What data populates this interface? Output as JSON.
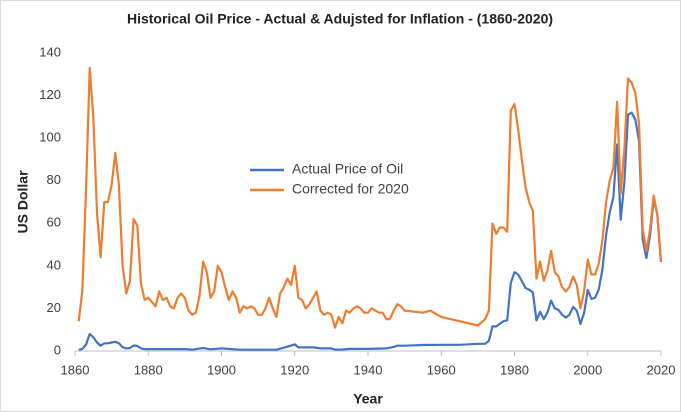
{
  "chart_data": {
    "type": "line",
    "title": "Historical Oil Price - Actual & Adujsted for Inflation - (1860-2020)",
    "xlabel": "Year",
    "ylabel": "US Dollar",
    "xlim": [
      1860,
      2020
    ],
    "xticks": [
      1860,
      1880,
      1900,
      1920,
      1940,
      1960,
      1980,
      2000,
      2020
    ],
    "ylim": [
      0,
      140
    ],
    "yticks": [
      0,
      20,
      40,
      60,
      80,
      100,
      120,
      140
    ],
    "grid": false,
    "legend": "center",
    "series": [
      {
        "name": "Actual Price of Oil",
        "color": "#4472c4",
        "x": [
          1861,
          1862,
          1863,
          1864,
          1865,
          1866,
          1867,
          1868,
          1869,
          1870,
          1871,
          1872,
          1873,
          1874,
          1875,
          1876,
          1877,
          1878,
          1879,
          1880,
          1885,
          1890,
          1892,
          1895,
          1897,
          1900,
          1905,
          1910,
          1915,
          1918,
          1920,
          1921,
          1925,
          1927,
          1930,
          1931,
          1933,
          1935,
          1940,
          1945,
          1947,
          1948,
          1950,
          1955,
          1960,
          1965,
          1970,
          1972,
          1973,
          1974,
          1975,
          1976,
          1977,
          1978,
          1979,
          1980,
          1981,
          1982,
          1983,
          1984,
          1985,
          1986,
          1987,
          1988,
          1989,
          1990,
          1991,
          1992,
          1993,
          1994,
          1995,
          1996,
          1997,
          1998,
          1999,
          2000,
          2001,
          2002,
          2003,
          2004,
          2005,
          2006,
          2007,
          2008,
          2009,
          2010,
          2011,
          2012,
          2013,
          2014,
          2015,
          2016,
          2017,
          2018,
          2019,
          2020
        ],
        "values": [
          0.5,
          1,
          3,
          8,
          6.5,
          4,
          2.5,
          3.6,
          3.6,
          4,
          4.3,
          3.6,
          1.8,
          1.2,
          1.4,
          2.6,
          2.4,
          1.2,
          0.9,
          0.9,
          0.9,
          0.9,
          0.6,
          1.4,
          0.8,
          1.2,
          0.6,
          0.6,
          0.6,
          2,
          3.1,
          1.7,
          1.7,
          1.2,
          1.2,
          0.65,
          0.7,
          1,
          1,
          1.2,
          1.9,
          2.5,
          2.5,
          2.8,
          2.9,
          2.9,
          3.4,
          3.4,
          4.8,
          11.6,
          11.5,
          12.8,
          14,
          14.4,
          32,
          37,
          35.9,
          32.9,
          29.6,
          28.8,
          27.6,
          14.4,
          18.4,
          15,
          18.2,
          23.7,
          20,
          19.3,
          17,
          15.7,
          17,
          20.7,
          19,
          12.7,
          17.9,
          28.7,
          24.5,
          25,
          28.8,
          38.3,
          54.5,
          65.1,
          72.4,
          97,
          61.7,
          79.6,
          111,
          112,
          108.6,
          98.9,
          52.4,
          43.7,
          54.2,
          71.3,
          64.2,
          41.8
        ]
      },
      {
        "name": "Corrected for 2020",
        "color": "#ed7d31",
        "x": [
          1861,
          1862,
          1863,
          1864,
          1865,
          1866,
          1867,
          1868,
          1869,
          1870,
          1871,
          1872,
          1873,
          1874,
          1875,
          1876,
          1877,
          1878,
          1879,
          1880,
          1881,
          1882,
          1883,
          1884,
          1885,
          1886,
          1887,
          1888,
          1889,
          1890,
          1891,
          1892,
          1893,
          1894,
          1895,
          1896,
          1897,
          1898,
          1899,
          1900,
          1901,
          1902,
          1903,
          1904,
          1905,
          1906,
          1907,
          1908,
          1909,
          1910,
          1911,
          1912,
          1913,
          1914,
          1915,
          1916,
          1917,
          1918,
          1919,
          1920,
          1921,
          1922,
          1923,
          1924,
          1925,
          1926,
          1927,
          1928,
          1929,
          1930,
          1931,
          1932,
          1933,
          1934,
          1935,
          1936,
          1937,
          1938,
          1939,
          1940,
          1941,
          1942,
          1943,
          1944,
          1945,
          1946,
          1947,
          1948,
          1949,
          1950,
          1955,
          1957,
          1960,
          1965,
          1970,
          1972,
          1973,
          1974,
          1975,
          1976,
          1977,
          1978,
          1979,
          1980,
          1981,
          1982,
          1983,
          1984,
          1985,
          1986,
          1987,
          1988,
          1989,
          1990,
          1991,
          1992,
          1993,
          1994,
          1995,
          1996,
          1997,
          1998,
          1999,
          2000,
          2001,
          2002,
          2003,
          2004,
          2005,
          2006,
          2007,
          2008,
          2009,
          2010,
          2011,
          2012,
          2013,
          2014,
          2015,
          2016,
          2017,
          2018,
          2019,
          2020
        ],
        "values": [
          14,
          28,
          75,
          133,
          110,
          65,
          44,
          70,
          70,
          78,
          93,
          78,
          40,
          27,
          33,
          62,
          59,
          32,
          24,
          25,
          23,
          21,
          28,
          24,
          25,
          21,
          20,
          25,
          27,
          25,
          19,
          17,
          18,
          26,
          42,
          37,
          25,
          28,
          40,
          37,
          30,
          24,
          28,
          25,
          18,
          21,
          20,
          21,
          20,
          17,
          17,
          20,
          25,
          20,
          16,
          27,
          30,
          34,
          31,
          40,
          25,
          24,
          20,
          22,
          25,
          28,
          19,
          17,
          18,
          17,
          11,
          16,
          13,
          19,
          18,
          20,
          21,
          20,
          18,
          18,
          20,
          19,
          18,
          18,
          15,
          15,
          19,
          22,
          21,
          19,
          18,
          19,
          16,
          14,
          12,
          15,
          19,
          60,
          55,
          58,
          58,
          56,
          113,
          116,
          104,
          90,
          77,
          70,
          66,
          34,
          42,
          33,
          38,
          47,
          37,
          35,
          30,
          28,
          30,
          35,
          31,
          20,
          28,
          43,
          36,
          36,
          41,
          52,
          70,
          80,
          86,
          117,
          74,
          95,
          128,
          126,
          121,
          107,
          57,
          47,
          57,
          73,
          64,
          42
        ]
      }
    ]
  }
}
